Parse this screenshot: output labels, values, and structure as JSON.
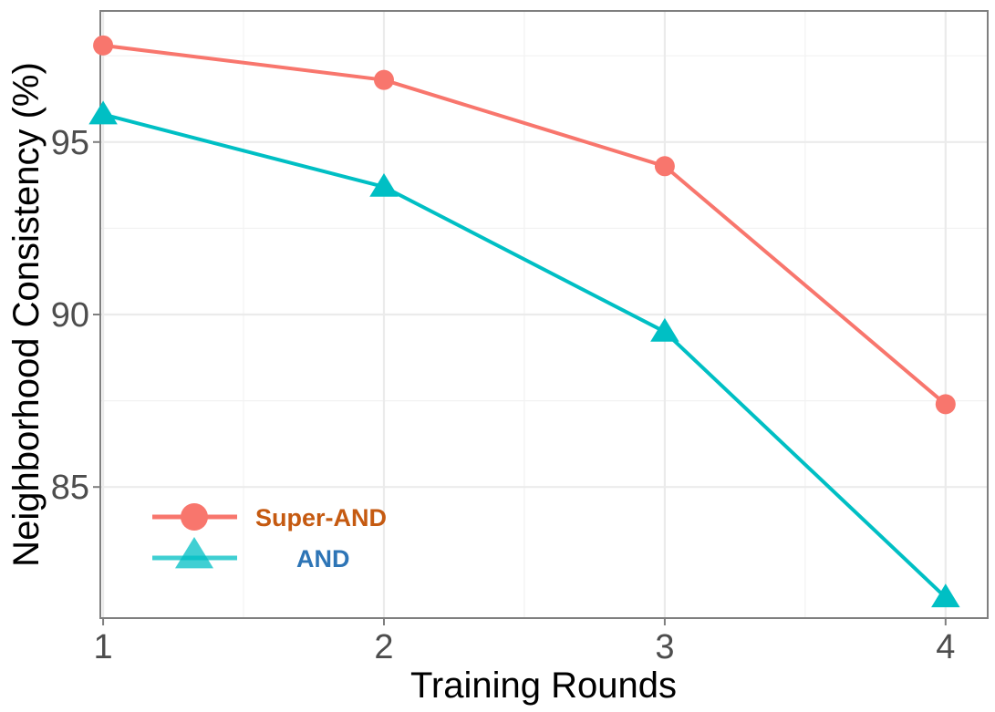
{
  "chart_data": {
    "type": "line",
    "xlabel": "Training Rounds",
    "ylabel": "Neighborhood Consistency (%)",
    "x": [
      1,
      2,
      3,
      4
    ],
    "xticks": [
      "1",
      "2",
      "3",
      "4"
    ],
    "yticks": [
      "85",
      "90",
      "95"
    ],
    "xlim": [
      0.99,
      4.15
    ],
    "ylim": [
      81.2,
      98.8
    ],
    "grid": true,
    "legend_position": "bottom-left",
    "series": [
      {
        "name": "Super-AND",
        "values": [
          97.8,
          96.8,
          94.3,
          87.4
        ],
        "color": "#f8766d",
        "marker": "circle",
        "label_color": "#c55a11"
      },
      {
        "name": "AND",
        "values": [
          95.8,
          93.7,
          89.5,
          81.8
        ],
        "color": "#00bfc4",
        "marker": "triangle",
        "label_color": "#2e75b6"
      }
    ]
  }
}
